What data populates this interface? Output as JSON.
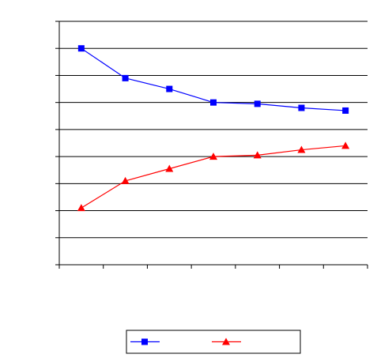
{
  "chart_data": {
    "type": "line",
    "categories": [
      null,
      null,
      null,
      null,
      null,
      null,
      null
    ],
    "series": [
      {
        "color": "#0000ff",
        "marker": "square",
        "values": [
          8.0,
          6.9,
          6.5,
          6.0,
          5.95,
          5.8,
          5.7
        ]
      },
      {
        "color": "#ff0000",
        "marker": "triangle",
        "values": [
          2.1,
          3.1,
          3.55,
          4.0,
          4.05,
          4.25,
          4.4
        ]
      }
    ],
    "ylim": [
      0,
      9
    ],
    "yticks": [
      0,
      1,
      2,
      3,
      4,
      5,
      6,
      7,
      8,
      9
    ],
    "grid": true
  }
}
